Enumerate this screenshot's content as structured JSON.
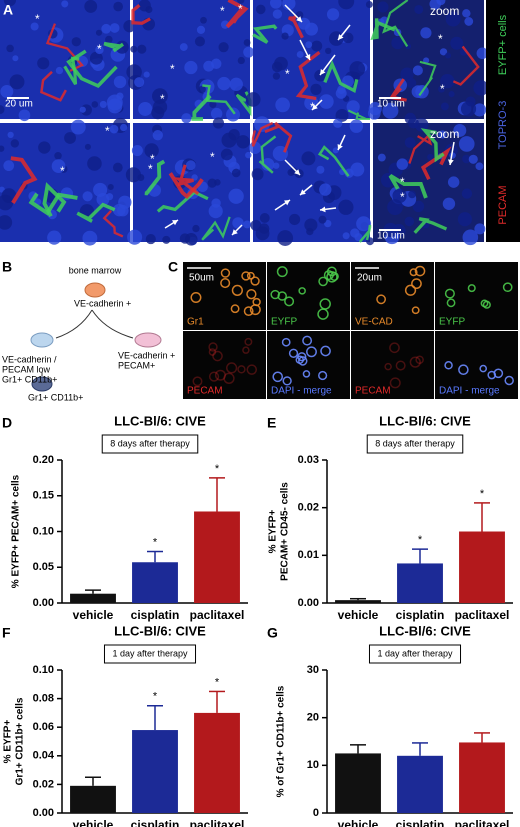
{
  "panel_a": {
    "label": "A",
    "scale_bars": [
      "20 um",
      "10 um",
      "10 um"
    ],
    "zoom": [
      "zoom",
      "zoom"
    ],
    "channels": [
      "EYFP+ cells",
      "TOPRO-3",
      "PECAM"
    ],
    "asterisk": "*"
  },
  "panel_b": {
    "label": "B",
    "nodes": [
      {
        "lines": [
          "bone marrow"
        ]
      },
      {
        "lines": [
          "VE-cadherin +"
        ]
      },
      {
        "lines": [
          "VE-cadherin /",
          "PECAM low",
          "Gr1+ CD11b+"
        ]
      },
      {
        "lines": [
          "VE-cadherin +",
          "PECAM+"
        ]
      },
      {
        "lines": [
          "Gr1+ CD11b+"
        ]
      }
    ]
  },
  "panel_c": {
    "label": "C",
    "scale_bars": [
      "50um",
      "20um"
    ],
    "tiles": [
      "Gr1",
      "EYFP",
      "VE-CAD",
      "EYFP",
      "PECAM",
      "DAPI - merge",
      "PECAM",
      "DAPI - merge"
    ]
  },
  "chart_data": [
    {
      "type": "bar",
      "panel_label": "D",
      "title": "LLC-Bl/6: CIVE",
      "annotation": "8 days after therapy",
      "ylabel": [
        "% EYFP+ PECAM+ cells"
      ],
      "categories": [
        "vehicle",
        "cisplatin",
        "paclitaxel"
      ],
      "values": [
        0.013,
        0.057,
        0.128
      ],
      "errors": [
        0.005,
        0.015,
        0.047
      ],
      "significance": [
        null,
        "*",
        "*"
      ],
      "colors": [
        "#111111",
        "#1c2a96",
        "#b3191c"
      ],
      "ylim": [
        0,
        0.2
      ],
      "yticks": [
        {
          "value": 0,
          "label": "0.00"
        },
        0.05,
        {
          "value": 0.1,
          "label": "0.10"
        },
        0.15,
        {
          "value": 0.2,
          "label": "0.20"
        }
      ]
    },
    {
      "type": "bar",
      "panel_label": "E",
      "title": "LLC-Bl/6: CIVE",
      "annotation": "8 days after therapy",
      "ylabel": [
        "% EYFP+",
        "PECAM+ CD45- cells"
      ],
      "categories": [
        "vehicle",
        "cisplatin",
        "paclitaxel"
      ],
      "values": [
        0.0006,
        0.0083,
        0.015
      ],
      "errors": [
        0.0003,
        0.003,
        0.006
      ],
      "significance": [
        null,
        "*",
        "*"
      ],
      "colors": [
        "#111111",
        "#1c2a96",
        "#b3191c"
      ],
      "ylim": [
        0,
        0.03
      ],
      "yticks": [
        {
          "value": 0,
          "label": "0.00"
        },
        0.01,
        0.02,
        0.03
      ]
    },
    {
      "type": "bar",
      "panel_label": "F",
      "title": "LLC-Bl/6: CIVE",
      "annotation": "1 day after therapy",
      "ylabel": [
        "% EYFP+",
        "Gr1+ CD11b+ cells"
      ],
      "categories": [
        "vehicle",
        "cisplatin",
        "paclitaxel"
      ],
      "values": [
        0.019,
        0.058,
        0.07
      ],
      "errors": [
        0.006,
        0.017,
        0.015
      ],
      "significance": [
        null,
        "*",
        "*"
      ],
      "colors": [
        "#111111",
        "#1c2a96",
        "#b3191c"
      ],
      "ylim": [
        0,
        0.1
      ],
      "yticks": [
        {
          "value": 0,
          "label": "0.00"
        },
        0.02,
        0.04,
        0.06,
        0.08,
        {
          "value": 0.1,
          "label": "0.10"
        }
      ]
    },
    {
      "type": "bar",
      "panel_label": "G",
      "title": "LLC-Bl/6: CIVE",
      "annotation": "1 day after therapy",
      "ylabel": [
        "% of Gr1+ CD11b+ cells"
      ],
      "categories": [
        "vehicle",
        "cisplatin",
        "paclitaxel"
      ],
      "values": [
        12.5,
        12,
        14.8
      ],
      "errors": [
        1.8,
        2.7,
        2
      ],
      "significance": [
        null,
        null,
        null
      ],
      "colors": [
        "#111111",
        "#1c2a96",
        "#b3191c"
      ],
      "ylim": [
        0,
        30
      ],
      "yticks": [
        0,
        10,
        20,
        30
      ]
    }
  ]
}
